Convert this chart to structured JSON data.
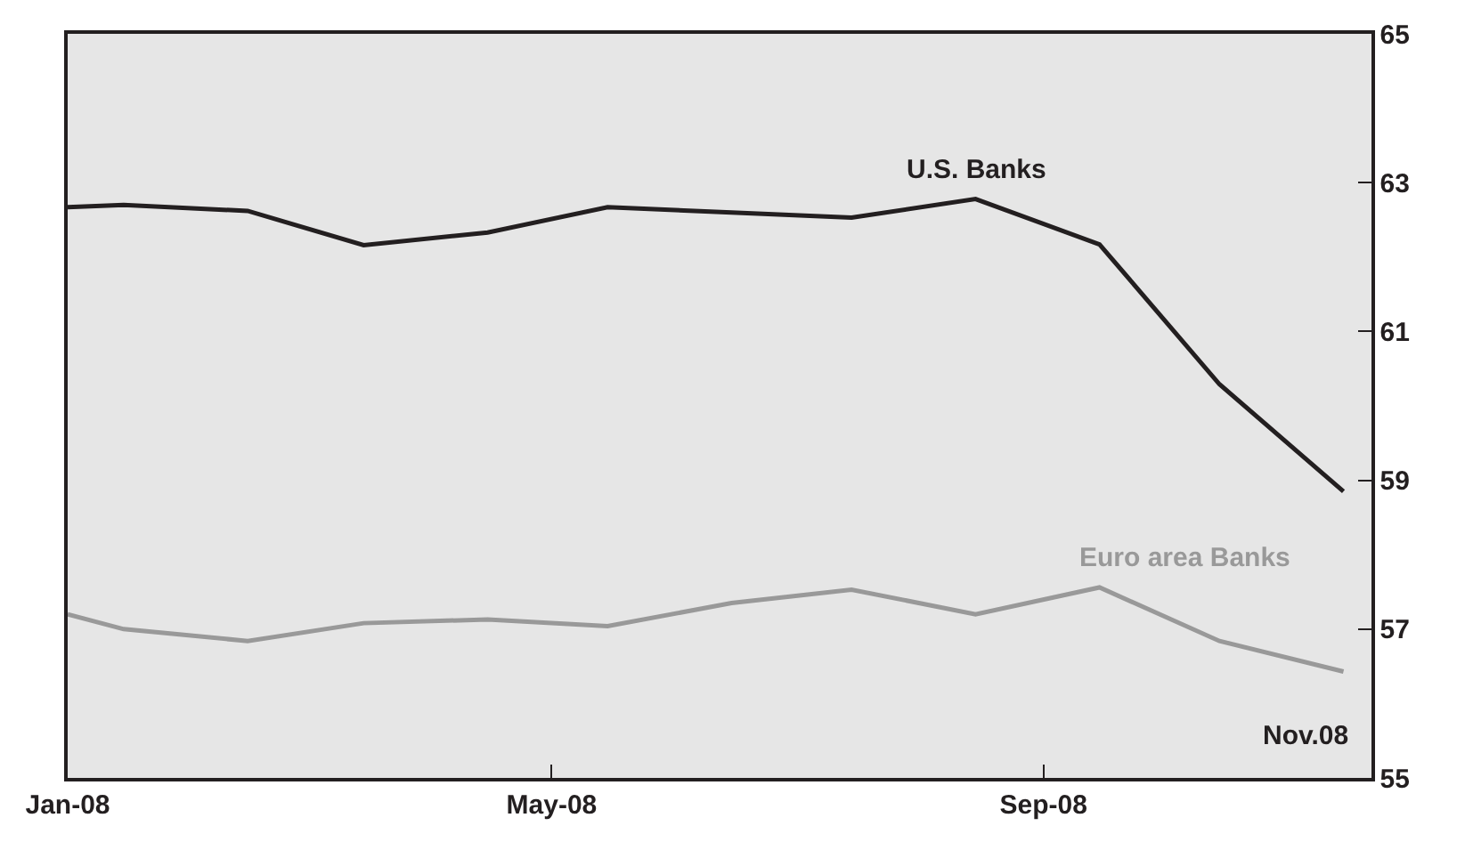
{
  "chart_data": {
    "type": "line",
    "x": [
      "2008-01-01",
      "2008-01-15",
      "2008-02-15",
      "2008-03-15",
      "2008-04-15",
      "2008-05-15",
      "2008-06-15",
      "2008-07-15",
      "2008-08-15",
      "2008-09-15",
      "2008-10-15",
      "2008-11-15"
    ],
    "series": [
      {
        "name": "U.S. Banks",
        "color": "#231f20",
        "values": [
          62.67,
          62.7,
          62.62,
          62.16,
          62.33,
          62.67,
          62.6,
          62.53,
          62.78,
          62.17,
          60.29,
          58.85
        ]
      },
      {
        "name": "Euro area Banks",
        "color": "#999999",
        "values": [
          57.2,
          57.0,
          56.84,
          57.08,
          57.13,
          57.04,
          57.35,
          57.53,
          57.2,
          57.56,
          56.84,
          56.43
        ]
      }
    ],
    "xlim": [
      "2008-01-01",
      "2008-11-22"
    ],
    "xticks": [
      {
        "value": "2008-01-01",
        "label": "Jan-08"
      },
      {
        "value": "2008-05-01",
        "label": "May-08"
      },
      {
        "value": "2008-09-01",
        "label": "Sep-08"
      }
    ],
    "ylim": [
      55,
      65
    ],
    "yticks": [
      55,
      57,
      59,
      61,
      63,
      65
    ],
    "annotations": [
      "Nov.08"
    ],
    "grid": false,
    "legend": false,
    "marker": "none",
    "line_style": "solid"
  }
}
